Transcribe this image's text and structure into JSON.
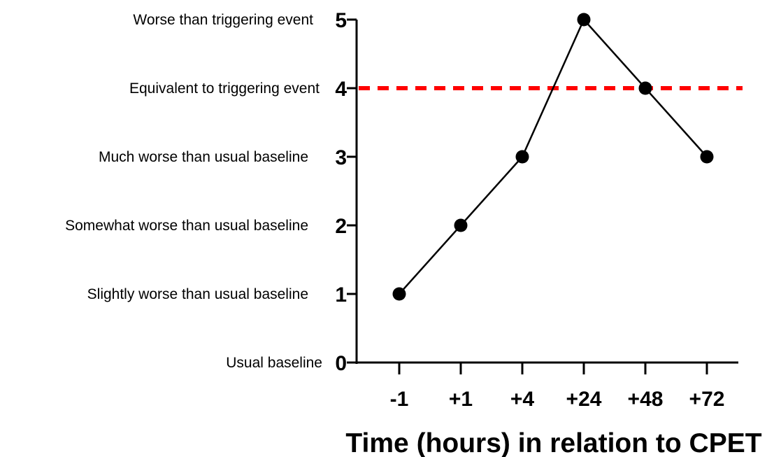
{
  "chart_data": {
    "type": "line",
    "title": "",
    "xlabel": "Time (hours) in relation to CPET",
    "ylabel": "",
    "categories": [
      "-1",
      "+1",
      "+4",
      "+24",
      "+48",
      "+72"
    ],
    "series": [
      {
        "values": [
          1,
          2,
          3,
          5,
          4,
          3
        ],
        "color": "#000000"
      }
    ],
    "ylim": [
      0,
      5
    ],
    "yticks": [
      0,
      1,
      2,
      3,
      4,
      5
    ],
    "ytick_labels": [
      "0",
      "1",
      "2",
      "3",
      "4",
      "5"
    ],
    "y_category_labels": [
      "Usual baseline",
      "Slightly worse than usual baseline",
      "Somewhat worse than usual baseline",
      "Much worse than usual baseline",
      "Equivalent to triggering event",
      "Worse than triggering event"
    ],
    "reference_line": {
      "y": 4,
      "color": "#ff0000",
      "style": "dashed"
    },
    "grid": false,
    "legend": "none"
  }
}
